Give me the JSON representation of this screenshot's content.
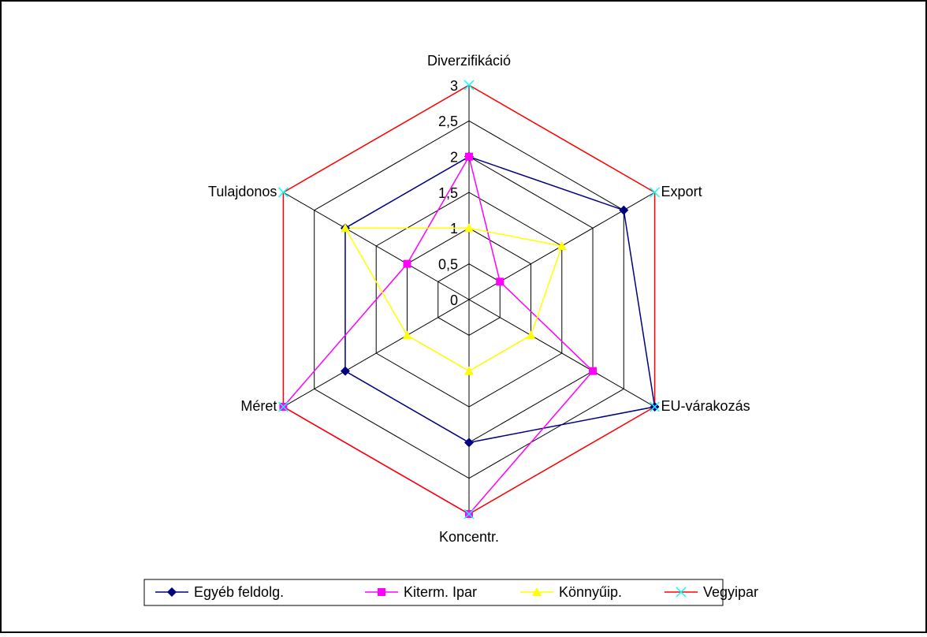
{
  "chart_data": {
    "type": "radar",
    "categories": [
      "Diverzifikáció",
      "Export",
      "EU-várakozás",
      "Koncentr.",
      "Méret",
      "Tulajdonos"
    ],
    "series": [
      {
        "name": "Egyéb feldolg.",
        "color": "#000080",
        "marker": "diamond",
        "marker_color": "#000080",
        "values": [
          2,
          2.5,
          3,
          2,
          2,
          2
        ]
      },
      {
        "name": "Kiterm. Ipar",
        "color": "#ff00ff",
        "marker": "square",
        "marker_color": "#ff00ff",
        "values": [
          2,
          0.5,
          2,
          3,
          3,
          1
        ]
      },
      {
        "name": "Könnyűip.",
        "color": "#ffff00",
        "marker": "triangle",
        "marker_color": "#ffff00",
        "values": [
          1,
          1.5,
          1,
          1,
          1,
          2
        ]
      },
      {
        "name": "Vegyipar",
        "color": "#ff0000",
        "marker": "x",
        "marker_color": "#00ffff",
        "values": [
          3,
          3,
          3,
          3,
          3,
          3
        ]
      }
    ],
    "ylim": [
      0,
      3
    ],
    "yticks": [
      0,
      {
        "value": 0.5,
        "label": "0,5"
      },
      1,
      {
        "value": 1.5,
        "label": "1,5"
      },
      2,
      {
        "value": 2.5,
        "label": "2,5"
      },
      3
    ],
    "grid": true,
    "legend": "bottom"
  }
}
